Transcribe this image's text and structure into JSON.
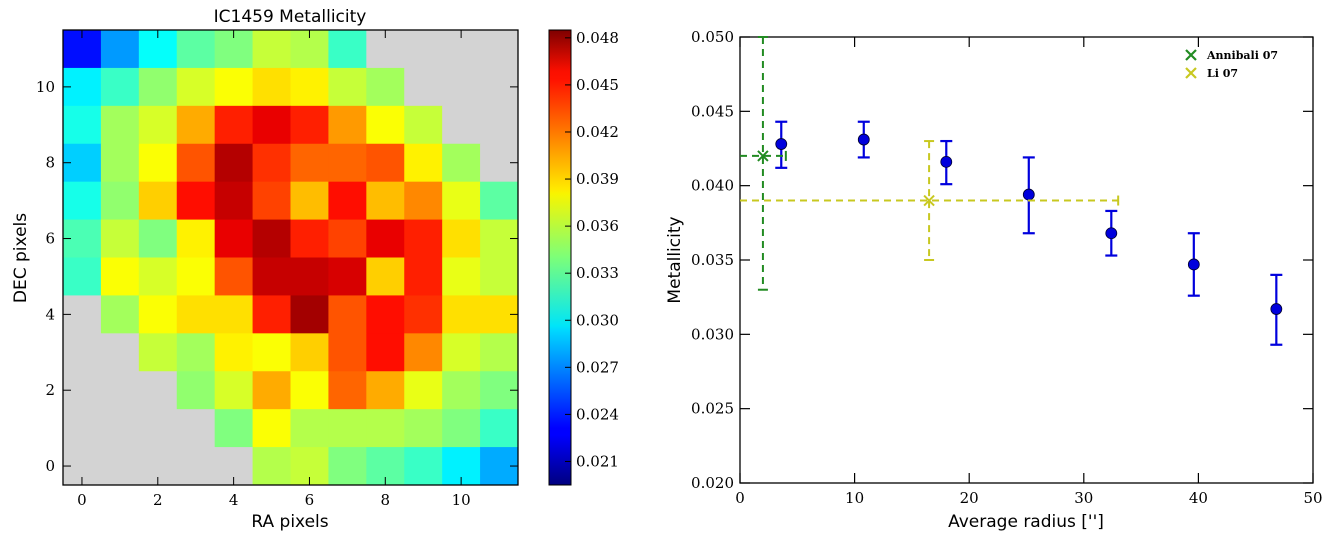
{
  "chart_data": [
    {
      "type": "heatmap",
      "title": "IC1459 Metallicity",
      "xlabel": "RA pixels",
      "ylabel": "DEC pixels",
      "xlim": [
        -0.5,
        11.5
      ],
      "ylim": [
        -0.5,
        11.5
      ],
      "x_ticks": [
        "0",
        "2",
        "4",
        "6",
        "8",
        "10"
      ],
      "y_ticks": [
        "0",
        "2",
        "4",
        "6",
        "8",
        "10"
      ],
      "colormap": "jet",
      "masked_color": "#d3d3d3",
      "colorbar": {
        "range": [
          0.0195,
          0.0485
        ],
        "ticks": [
          "0.021",
          "0.024",
          "0.027",
          "0.030",
          "0.033",
          "0.036",
          "0.039",
          "0.042",
          "0.045",
          "0.048"
        ]
      },
      "grid_rows_top_to_bottom": [
        [
          0.0235,
          0.0275,
          0.0305,
          0.033,
          0.034,
          0.036,
          0.0355,
          0.032,
          null,
          null,
          null,
          null
        ],
        [
          0.03,
          0.032,
          0.0345,
          0.0365,
          0.0375,
          0.0385,
          0.038,
          0.036,
          0.035,
          null,
          null,
          null
        ],
        [
          0.031,
          0.035,
          0.0365,
          0.04,
          0.044,
          0.0455,
          0.044,
          0.0405,
          0.0375,
          0.036,
          null,
          null
        ],
        [
          0.029,
          0.035,
          0.0375,
          0.0425,
          0.047,
          0.0435,
          0.042,
          0.042,
          0.0425,
          0.038,
          0.035,
          null
        ],
        [
          0.031,
          0.0345,
          0.039,
          0.0445,
          0.0465,
          0.043,
          0.0395,
          0.0445,
          0.0395,
          0.041,
          0.037,
          0.033
        ],
        [
          0.0325,
          0.036,
          0.034,
          0.038,
          0.0455,
          0.047,
          0.044,
          0.043,
          0.0455,
          0.044,
          0.0385,
          0.036
        ],
        [
          0.032,
          0.0375,
          0.0365,
          0.0375,
          0.0425,
          0.0465,
          0.0465,
          0.046,
          0.039,
          0.044,
          0.037,
          0.036
        ],
        [
          null,
          0.035,
          0.0375,
          0.0385,
          0.0385,
          0.044,
          0.0475,
          0.0425,
          0.0445,
          0.0435,
          0.0385,
          0.0385
        ],
        [
          null,
          null,
          0.036,
          0.035,
          0.038,
          0.0375,
          0.039,
          0.0425,
          0.0445,
          0.041,
          0.0365,
          0.0355
        ],
        [
          null,
          null,
          null,
          0.0345,
          0.0365,
          0.04,
          0.0375,
          0.042,
          0.04,
          0.037,
          0.035,
          0.034
        ],
        [
          null,
          null,
          null,
          null,
          0.034,
          0.0375,
          0.0355,
          0.0355,
          0.0355,
          0.035,
          0.034,
          0.032
        ],
        [
          null,
          null,
          null,
          null,
          null,
          0.0355,
          0.036,
          0.034,
          0.033,
          0.032,
          0.03,
          0.028
        ]
      ]
    },
    {
      "type": "scatter",
      "xlabel": "Average radius ['']",
      "ylabel": "Metallicity",
      "xlim": [
        0,
        50
      ],
      "ylim": [
        0.02,
        0.05
      ],
      "x_ticks": [
        "0",
        "10",
        "20",
        "30",
        "40",
        "50"
      ],
      "y_ticks": [
        "0.020",
        "0.025",
        "0.030",
        "0.035",
        "0.040",
        "0.045",
        "0.050"
      ],
      "legend_placement": "top-right",
      "series": [
        {
          "style": "errorbar",
          "color": "#0000dd",
          "points": [
            {
              "x": 3.6,
              "y": 0.0428,
              "yerr_low": 0.0412,
              "yerr_high": 0.0443
            },
            {
              "x": 10.8,
              "y": 0.0431,
              "yerr_low": 0.0419,
              "yerr_high": 0.0443
            },
            {
              "x": 18.0,
              "y": 0.0416,
              "yerr_low": 0.0401,
              "yerr_high": 0.043
            },
            {
              "x": 25.2,
              "y": 0.0394,
              "yerr_low": 0.0368,
              "yerr_high": 0.0419
            },
            {
              "x": 32.4,
              "y": 0.0368,
              "yerr_low": 0.0353,
              "yerr_high": 0.0383
            },
            {
              "x": 39.6,
              "y": 0.0347,
              "yerr_low": 0.0326,
              "yerr_high": 0.0368
            },
            {
              "x": 46.8,
              "y": 0.0317,
              "yerr_low": 0.0293,
              "yerr_high": 0.034
            }
          ]
        },
        {
          "name": "Annibali 07",
          "style": "reference",
          "color": "#228b22",
          "points": [
            {
              "x": 2.0,
              "y": 0.042,
              "xerr_low": 0.0,
              "xerr_high": 4.0,
              "yerr_low": 0.033,
              "yerr_high": 0.05
            }
          ]
        },
        {
          "name": "Li 07",
          "style": "reference",
          "color": "#c8c820",
          "points": [
            {
              "x": 16.5,
              "y": 0.039,
              "xerr_low": 0.0,
              "xerr_high": 33.0,
              "yerr_low": 0.035,
              "yerr_high": 0.043
            }
          ]
        }
      ]
    }
  ]
}
